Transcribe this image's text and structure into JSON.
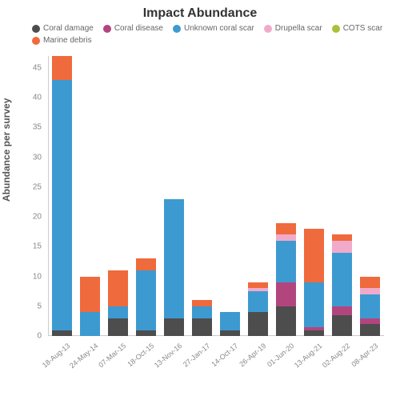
{
  "chart": {
    "type": "stacked-bar",
    "title": "Impact Abundance",
    "title_fontsize": 16,
    "ylabel": "Abundance per survey",
    "label_fontsize": 12,
    "ylim": [
      0,
      47
    ],
    "ytick_step": 5,
    "yticks": [
      0,
      5,
      10,
      15,
      20,
      25,
      30,
      35,
      40,
      45
    ],
    "background_color": "#ffffff",
    "axis_color": "#cccccc",
    "tick_font_color": "#888888",
    "bar_width_ratio": 0.7,
    "series": [
      {
        "name": "Coral damage",
        "color": "#4d4d4d"
      },
      {
        "name": "Coral disease",
        "color": "#b2457e"
      },
      {
        "name": "Unknown coral scar",
        "color": "#3d9ad1"
      },
      {
        "name": "Drupella scar",
        "color": "#f2aacb"
      },
      {
        "name": "COTS scar",
        "color": "#a6c23c"
      },
      {
        "name": "Marine debris",
        "color": "#ef6a3c"
      }
    ],
    "categories": [
      "18-Aug-13",
      "24-May-14",
      "07-Mar-15",
      "18-Oct-15",
      "13-Nov-16",
      "27-Jan-17",
      "14-Oct-17",
      "26-Apr-19",
      "01-Jun-20",
      "13-Aug-21",
      "02-Aug-22",
      "08-Apr-23"
    ],
    "data": {
      "18-Aug-13": {
        "Coral damage": 1.0,
        "Coral disease": 0.0,
        "Unknown coral scar": 42.0,
        "Drupella scar": 0.0,
        "COTS scar": 0.0,
        "Marine debris": 4.0
      },
      "24-May-14": {
        "Coral damage": 0.0,
        "Coral disease": 0.0,
        "Unknown coral scar": 4.0,
        "Drupella scar": 0.0,
        "COTS scar": 0.0,
        "Marine debris": 6.0
      },
      "07-Mar-15": {
        "Coral damage": 3.0,
        "Coral disease": 0.0,
        "Unknown coral scar": 2.0,
        "Drupella scar": 0.0,
        "COTS scar": 0.0,
        "Marine debris": 6.0
      },
      "18-Oct-15": {
        "Coral damage": 1.0,
        "Coral disease": 0.0,
        "Unknown coral scar": 10.0,
        "Drupella scar": 0.0,
        "COTS scar": 0.0,
        "Marine debris": 2.0
      },
      "13-Nov-16": {
        "Coral damage": 3.0,
        "Coral disease": 0.0,
        "Unknown coral scar": 20.0,
        "Drupella scar": 0.0,
        "COTS scar": 0.0,
        "Marine debris": 0.0
      },
      "27-Jan-17": {
        "Coral damage": 3.0,
        "Coral disease": 0.0,
        "Unknown coral scar": 2.0,
        "Drupella scar": 0.0,
        "COTS scar": 0.0,
        "Marine debris": 1.0
      },
      "14-Oct-17": {
        "Coral damage": 1.0,
        "Coral disease": 0.0,
        "Unknown coral scar": 3.0,
        "Drupella scar": 0.0,
        "COTS scar": 0.0,
        "Marine debris": 0.0
      },
      "26-Apr-19": {
        "Coral damage": 4.0,
        "Coral disease": 0.0,
        "Unknown coral scar": 3.5,
        "Drupella scar": 0.5,
        "COTS scar": 0.0,
        "Marine debris": 1.0
      },
      "01-Jun-20": {
        "Coral damage": 5.0,
        "Coral disease": 4.0,
        "Unknown coral scar": 7.0,
        "Drupella scar": 1.0,
        "COTS scar": 0.0,
        "Marine debris": 2.0
      },
      "13-Aug-21": {
        "Coral damage": 1.0,
        "Coral disease": 0.5,
        "Unknown coral scar": 7.5,
        "Drupella scar": 0.0,
        "COTS scar": 0.0,
        "Marine debris": 9.0
      },
      "02-Aug-22": {
        "Coral damage": 3.5,
        "Coral disease": 1.5,
        "Unknown coral scar": 9.0,
        "Drupella scar": 2.0,
        "COTS scar": 0.0,
        "Marine debris": 1.0
      },
      "08-Apr-23": {
        "Coral damage": 2.0,
        "Coral disease": 1.0,
        "Unknown coral scar": 4.0,
        "Drupella scar": 1.0,
        "COTS scar": 0.0,
        "Marine debris": 2.0
      }
    }
  }
}
